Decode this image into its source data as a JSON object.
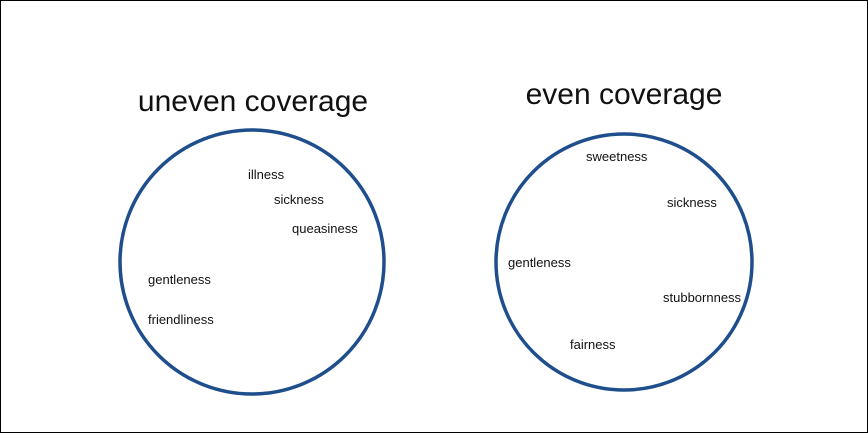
{
  "diagram": {
    "colors": {
      "circle_stroke": "#1f4e8c",
      "text": "#111111",
      "frame": "#000000"
    },
    "left": {
      "title": "uneven coverage",
      "words": [
        "illness",
        "sickness",
        "queasiness",
        "gentleness",
        "friendliness"
      ]
    },
    "right": {
      "title": "even coverage",
      "words": [
        "sweetness",
        "sickness",
        "gentleness",
        "stubbornness",
        "fairness"
      ]
    }
  }
}
